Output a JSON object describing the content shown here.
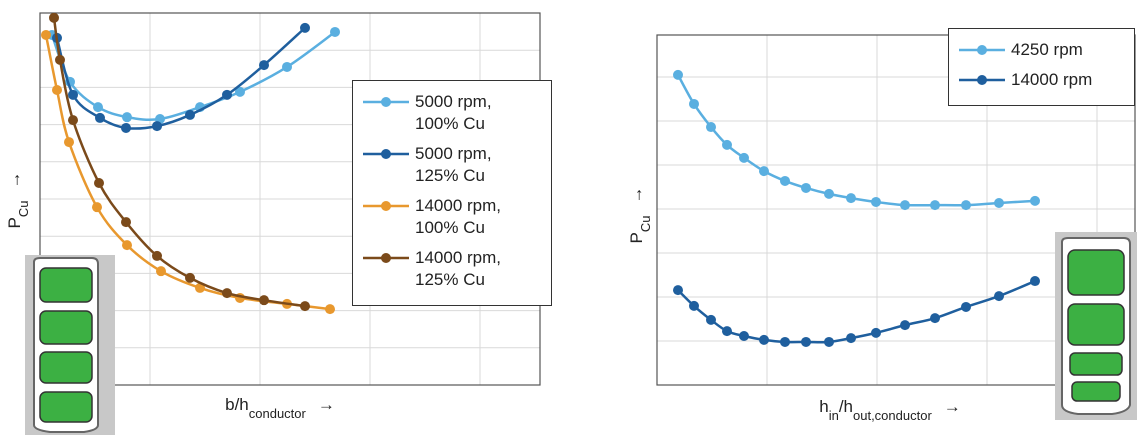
{
  "chart_data": [
    {
      "type": "line",
      "xlabel": [
        {
          "text": "b/h"
        },
        {
          "text": "conductor",
          "sub": true
        },
        {
          "text": "→"
        }
      ],
      "ylabel": [
        {
          "text": "P"
        },
        {
          "text": "Cu",
          "sub": true
        },
        {
          "text": "→"
        }
      ],
      "xlim": [
        0,
        10
      ],
      "ylim": [
        0,
        10
      ],
      "grid": true,
      "legend": "right",
      "series": [
        {
          "name": "5000 rpm, 100% Cu",
          "color": "#5aafe0",
          "x": [
            0.24,
            0.6,
            1.16,
            1.74,
            2.4,
            3.2,
            4.0,
            4.94,
            5.9
          ],
          "values": [
            9.41,
            8.15,
            7.47,
            7.2,
            7.15,
            7.47,
            7.88,
            8.55,
            9.49
          ]
        },
        {
          "name": "5000 rpm, 125% Cu",
          "color": "#1f5f9e",
          "x": [
            0.34,
            0.66,
            1.2,
            1.72,
            2.34,
            3.0,
            3.74,
            4.48,
            5.3
          ],
          "values": [
            9.33,
            7.8,
            7.18,
            6.91,
            6.96,
            7.26,
            7.8,
            8.6,
            9.6
          ]
        },
        {
          "name": "14000 rpm, 100% Cu",
          "color": "#e8982e",
          "x": [
            0.12,
            0.34,
            0.58,
            1.14,
            1.74,
            2.42,
            3.2,
            4.0,
            4.94,
            5.8
          ],
          "values": [
            9.41,
            7.93,
            6.53,
            4.78,
            3.76,
            3.06,
            2.61,
            2.34,
            2.18,
            2.04
          ]
        },
        {
          "name": "14000 rpm, 125% Cu",
          "color": "#7b4a1a",
          "x": [
            0.28,
            0.4,
            0.66,
            1.18,
            1.72,
            2.34,
            3.0,
            3.74,
            4.48,
            5.3
          ],
          "values": [
            9.87,
            8.74,
            7.12,
            5.43,
            4.38,
            3.47,
            2.88,
            2.47,
            2.28,
            2.12
          ]
        }
      ]
    },
    {
      "type": "line",
      "xlabel": [
        {
          "text": "h"
        },
        {
          "text": "in",
          "sub": true
        },
        {
          "text": "/h"
        },
        {
          "text": "out,conductor",
          "sub": true
        },
        {
          "text": "→"
        }
      ],
      "ylabel": [
        {
          "text": "P"
        },
        {
          "text": "Cu",
          "sub": true
        },
        {
          "text": "→"
        }
      ],
      "xlim": [
        0,
        9.56
      ],
      "ylim": [
        0,
        10
      ],
      "grid": true,
      "legend": "upper right",
      "series": [
        {
          "name": "4250 rpm",
          "color": "#5aafe0",
          "x": [
            0.42,
            0.74,
            1.08,
            1.4,
            1.74,
            2.14,
            2.56,
            2.98,
            3.44,
            3.88,
            4.38,
            4.96,
            5.56,
            6.18,
            6.84,
            7.56
          ],
          "values": [
            8.86,
            8.03,
            7.37,
            6.86,
            6.49,
            6.11,
            5.83,
            5.63,
            5.46,
            5.34,
            5.23,
            5.14,
            5.14,
            5.14,
            5.2,
            5.26
          ]
        },
        {
          "name": "14000 rpm",
          "color": "#1f5f9e",
          "x": [
            0.42,
            0.74,
            1.08,
            1.4,
            1.74,
            2.14,
            2.56,
            2.98,
            3.44,
            3.88,
            4.38,
            4.96,
            5.56,
            6.18,
            6.84,
            7.56
          ],
          "values": [
            2.71,
            2.26,
            1.86,
            1.54,
            1.4,
            1.29,
            1.23,
            1.23,
            1.23,
            1.34,
            1.49,
            1.71,
            1.91,
            2.23,
            2.54,
            2.97
          ]
        }
      ]
    }
  ]
}
